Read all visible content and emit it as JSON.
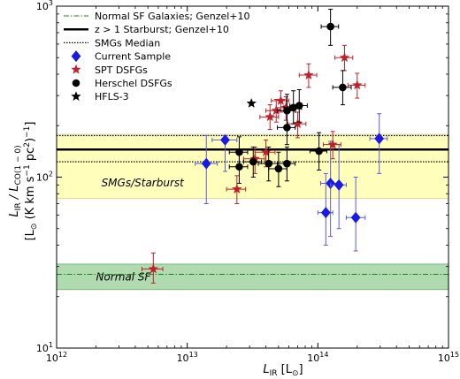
{
  "chart_data": {
    "type": "scatter",
    "title": "",
    "xscale": "log",
    "yscale": "log",
    "xlim": [
      1000000000000.0,
      1000000000000000.0
    ],
    "ylim": [
      10,
      1000
    ],
    "xlabel": {
      "main": "L",
      "sub": "IR",
      "unit_open": " [L",
      "unit_sub": "⊙",
      "unit_close": "]"
    },
    "ylabel": {
      "line1": {
        "main": "L",
        "sub1": "IR",
        "mid": " / L",
        "sub2": "CO(1 − 0)"
      },
      "line2": {
        "open": "[L",
        "sub": "⊙",
        "text": " (K km s",
        "sup1": "−1",
        "text2": " pc",
        "sup2": "2",
        "close": ")",
        "sup3": "−1",
        "end": "]"
      }
    },
    "xticks": [
      {
        "value": 1000000000000.0,
        "base": "10",
        "exp": "12"
      },
      {
        "value": 10000000000000.0,
        "base": "10",
        "exp": "13"
      },
      {
        "value": 100000000000000.0,
        "base": "10",
        "exp": "14"
      },
      {
        "value": 1000000000000000.0,
        "base": "10",
        "exp": "15"
      }
    ],
    "yticks": [
      {
        "value": 10,
        "base": "10",
        "exp": "1"
      },
      {
        "value": 100,
        "base": "10",
        "exp": "2"
      },
      {
        "value": 1000,
        "base": "10",
        "exp": "3"
      }
    ],
    "bands": [
      {
        "label": "SMGs/Starburst",
        "ymin": 75,
        "ymax": 178,
        "color": "#ffffb4",
        "edge": "#c9c980",
        "label_x": 2200000000000.0,
        "label_y": 88
      },
      {
        "label": "Normal SF",
        "ymin": 22,
        "ymax": 31,
        "color": "#a8d8a8",
        "edge": "#5aa05a",
        "label_x": 2000000000000.0,
        "label_y": 24.8
      }
    ],
    "lines": [
      {
        "name": "Normal SF Galaxies; Genzel+10",
        "y": 27,
        "color": "#208020",
        "style": "dashdot",
        "width": 1
      },
      {
        "name": "z > 1 Starburst; Genzel+10",
        "y": 145,
        "color": "#000000",
        "style": "solid",
        "width": 2.5
      },
      {
        "name": "SMGs Median",
        "y": 175,
        "color": "#000000",
        "style": "dotted",
        "width": 1.2
      },
      {
        "name": "",
        "y": 123,
        "color": "#000000",
        "style": "dotted",
        "width": 1.2
      }
    ],
    "series": [
      {
        "name": "Current Sample",
        "marker": "diamond",
        "color": "#1a1ae6",
        "errcolor": "#5c5cd8",
        "points": [
          {
            "x": 14000000000000.0,
            "y": 120,
            "xlo": 11500000000000.0,
            "xhi": 17000000000000.0,
            "ylo": 70,
            "yhi": 175
          },
          {
            "x": 19500000000000.0,
            "y": 165,
            "xlo": 15500000000000.0,
            "xhi": 24000000000000.0,
            "ylo": 108,
            "yhi": 175
          },
          {
            "x": 125000000000000.0,
            "y": 92,
            "xlo": 105000000000000.0,
            "xhi": 145000000000000.0,
            "ylo": 45,
            "yhi": 162
          },
          {
            "x": 145000000000000.0,
            "y": 90,
            "xlo": 125000000000000.0,
            "xhi": 165000000000000.0,
            "ylo": 50,
            "yhi": 155
          },
          {
            "x": 115000000000000.0,
            "y": 62,
            "xlo": 100000000000000.0,
            "xhi": 130000000000000.0,
            "ylo": 40,
            "yhi": 105
          },
          {
            "x": 195000000000000.0,
            "y": 58,
            "xlo": 165000000000000.0,
            "xhi": 230000000000000.0,
            "ylo": 37,
            "yhi": 100
          },
          {
            "x": 295000000000000.0,
            "y": 168,
            "xlo": 250000000000000.0,
            "xhi": 340000000000000.0,
            "ylo": 105,
            "yhi": 235
          }
        ]
      },
      {
        "name": "SPT DSFGs",
        "marker": "star",
        "color": "#c0202a",
        "errcolor": "#c0202a",
        "points": [
          {
            "x": 5500000000000.0,
            "y": 29,
            "xlo": 4500000000000.0,
            "xhi": 6500000000000.0,
            "ylo": 24,
            "yhi": 36
          },
          {
            "x": 24000000000000.0,
            "y": 85,
            "xlo": 20000000000000.0,
            "xhi": 28000000000000.0,
            "ylo": 70,
            "yhi": 102
          },
          {
            "x": 33000000000000.0,
            "y": 128,
            "xlo": 27000000000000.0,
            "xhi": 39000000000000.0,
            "ylo": 105,
            "yhi": 150
          },
          {
            "x": 40000000000000.0,
            "y": 140,
            "xlo": 33000000000000.0,
            "xhi": 47000000000000.0,
            "ylo": 115,
            "yhi": 165
          },
          {
            "x": 43000000000000.0,
            "y": 225,
            "xlo": 36000000000000.0,
            "xhi": 50000000000000.0,
            "ylo": 190,
            "yhi": 265
          },
          {
            "x": 48000000000000.0,
            "y": 245,
            "xlo": 40000000000000.0,
            "xhi": 56000000000000.0,
            "ylo": 210,
            "yhi": 285
          },
          {
            "x": 52000000000000.0,
            "y": 280,
            "xlo": 44000000000000.0,
            "xhi": 60000000000000.0,
            "ylo": 240,
            "yhi": 320
          },
          {
            "x": 57000000000000.0,
            "y": 255,
            "xlo": 48000000000000.0,
            "xhi": 66000000000000.0,
            "ylo": 215,
            "yhi": 295
          },
          {
            "x": 70000000000000.0,
            "y": 205,
            "xlo": 59000000000000.0,
            "xhi": 81000000000000.0,
            "ylo": 170,
            "yhi": 240
          },
          {
            "x": 85000000000000.0,
            "y": 395,
            "xlo": 72000000000000.0,
            "xhi": 98000000000000.0,
            "ylo": 335,
            "yhi": 460
          },
          {
            "x": 130000000000000.0,
            "y": 155,
            "xlo": 110000000000000.0,
            "xhi": 150000000000000.0,
            "ylo": 128,
            "yhi": 185
          },
          {
            "x": 160000000000000.0,
            "y": 500,
            "xlo": 135000000000000.0,
            "xhi": 185000000000000.0,
            "ylo": 420,
            "yhi": 590
          },
          {
            "x": 200000000000000.0,
            "y": 345,
            "xlo": 170000000000000.0,
            "xhi": 230000000000000.0,
            "ylo": 290,
            "yhi": 405
          }
        ]
      },
      {
        "name": "Herschel DSFGs",
        "marker": "circle",
        "color": "#000000",
        "errcolor": "#000000",
        "points": [
          {
            "x": 25000000000000.0,
            "y": 140,
            "xlo": 21000000000000.0,
            "xhi": 29000000000000.0,
            "ylo": 112,
            "yhi": 172
          },
          {
            "x": 25000000000000.0,
            "y": 115,
            "xlo": 21000000000000.0,
            "xhi": 29000000000000.0,
            "ylo": 92,
            "yhi": 142
          },
          {
            "x": 32000000000000.0,
            "y": 123,
            "xlo": 27000000000000.0,
            "xhi": 37000000000000.0,
            "ylo": 100,
            "yhi": 150
          },
          {
            "x": 42000000000000.0,
            "y": 120,
            "xlo": 35000000000000.0,
            "xhi": 49000000000000.0,
            "ylo": 95,
            "yhi": 150
          },
          {
            "x": 50000000000000.0,
            "y": 112,
            "xlo": 42000000000000.0,
            "xhi": 58000000000000.0,
            "ylo": 88,
            "yhi": 140
          },
          {
            "x": 58000000000000.0,
            "y": 120,
            "xlo": 49000000000000.0,
            "xhi": 67000000000000.0,
            "ylo": 95,
            "yhi": 150
          },
          {
            "x": 58000000000000.0,
            "y": 195,
            "xlo": 49000000000000.0,
            "xhi": 67000000000000.0,
            "ylo": 155,
            "yhi": 245
          },
          {
            "x": 65000000000000.0,
            "y": 255,
            "xlo": 55000000000000.0,
            "xhi": 75000000000000.0,
            "ylo": 205,
            "yhi": 320
          },
          {
            "x": 58000000000000.0,
            "y": 245,
            "xlo": 49000000000000.0,
            "xhi": 67000000000000.0,
            "ylo": 195,
            "yhi": 305
          },
          {
            "x": 72000000000000.0,
            "y": 262,
            "xlo": 61000000000000.0,
            "xhi": 83000000000000.0,
            "ylo": 210,
            "yhi": 325
          },
          {
            "x": 102000000000000.0,
            "y": 142,
            "xlo": 87000000000000.0,
            "xhi": 117000000000000.0,
            "ylo": 110,
            "yhi": 182
          },
          {
            "x": 125000000000000.0,
            "y": 760,
            "xlo": 106000000000000.0,
            "xhi": 144000000000000.0,
            "ylo": 590,
            "yhi": 960
          },
          {
            "x": 155000000000000.0,
            "y": 335,
            "xlo": 130000000000000.0,
            "xhi": 180000000000000.0,
            "ylo": 265,
            "yhi": 420
          }
        ]
      },
      {
        "name": "HFLS-3",
        "marker": "star",
        "color": "#000000",
        "errcolor": "#000000",
        "points": [
          {
            "x": 31000000000000.0,
            "y": 270
          }
        ]
      }
    ],
    "legend": {
      "placement": "top-left",
      "entries": [
        {
          "name": "Normal SF Galaxies; Genzel+10",
          "kind": "line",
          "color": "#208020",
          "style": "dashdot",
          "width": 1
        },
        {
          "name": "z > 1 Starburst; Genzel+10",
          "kind": "line",
          "color": "#000000",
          "style": "solid",
          "width": 2.5
        },
        {
          "name": "SMGs Median",
          "kind": "line",
          "color": "#000000",
          "style": "dotted",
          "width": 1.2
        },
        {
          "name": "Current Sample",
          "kind": "marker",
          "marker": "diamond",
          "color": "#1a1ae6"
        },
        {
          "name": "SPT DSFGs",
          "kind": "marker",
          "marker": "star",
          "color": "#c0202a"
        },
        {
          "name": "Herschel DSFGs",
          "kind": "marker",
          "marker": "circle",
          "color": "#000000"
        },
        {
          "name": "HFLS-3",
          "kind": "marker",
          "marker": "star",
          "color": "#000000"
        }
      ]
    },
    "grid": false
  }
}
